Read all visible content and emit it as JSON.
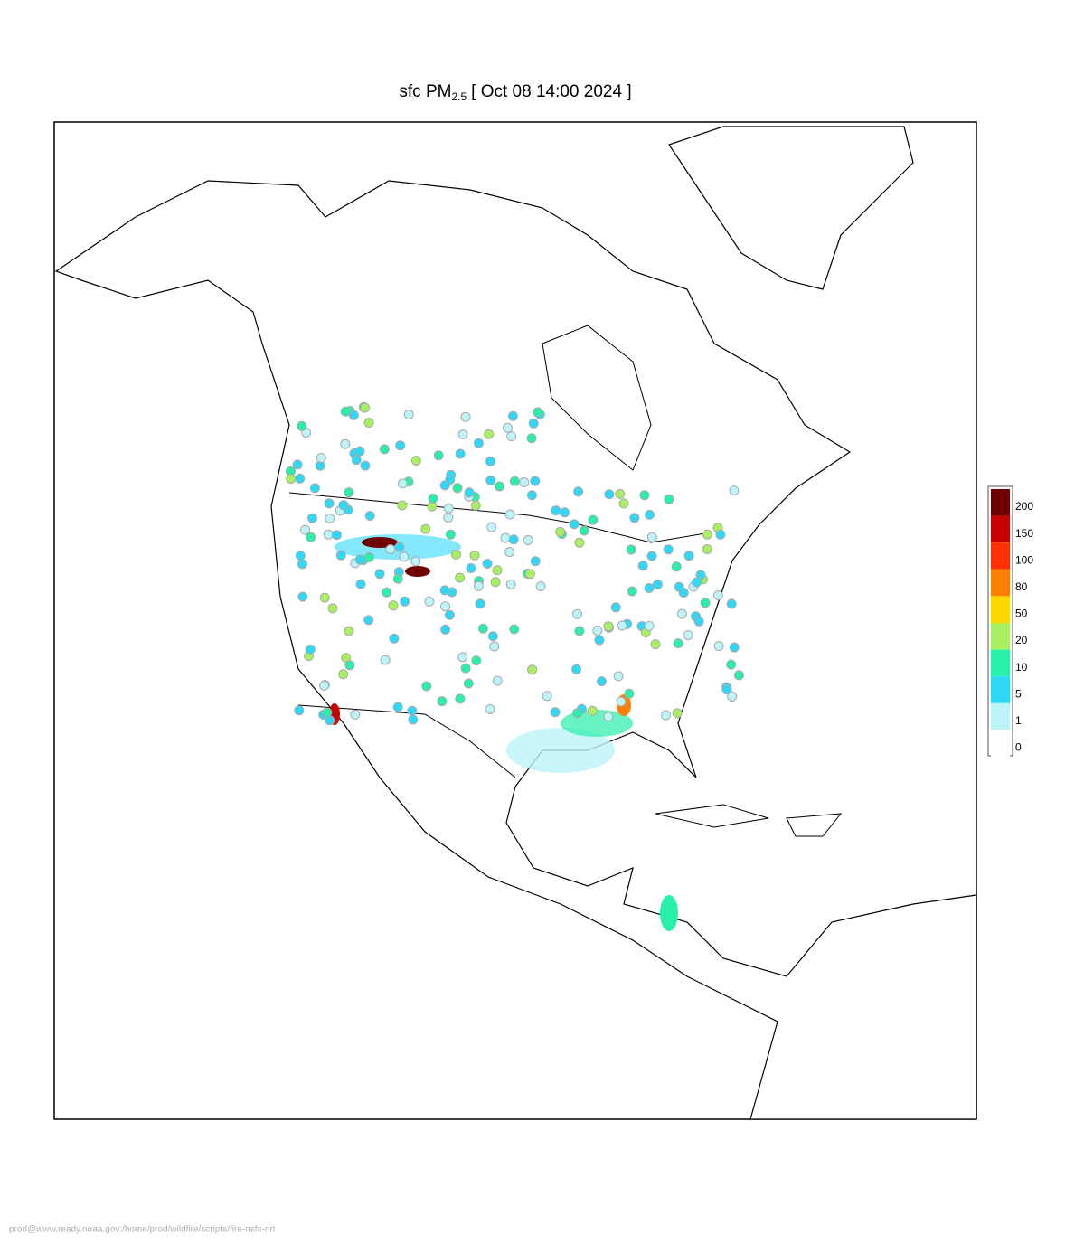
{
  "title": {
    "prefix": "sfc PM",
    "subscript": "2.5",
    "suffix": "[ Oct 08 14:00 2024 ]"
  },
  "legend": {
    "levels": [
      200,
      150,
      100,
      80,
      50,
      20,
      10,
      5,
      1,
      0
    ],
    "colors": [
      "#6e0000",
      "#c80000",
      "#ff3000",
      "#ff8000",
      "#ffd800",
      "#a8f060",
      "#28f0a8",
      "#30d8f8",
      "#bcf4fa",
      "#ffffff"
    ]
  },
  "footer": "prod@www.ready.noaa.gov:/home/prod/wildfire/scripts/fire-nsfs-nrt"
}
